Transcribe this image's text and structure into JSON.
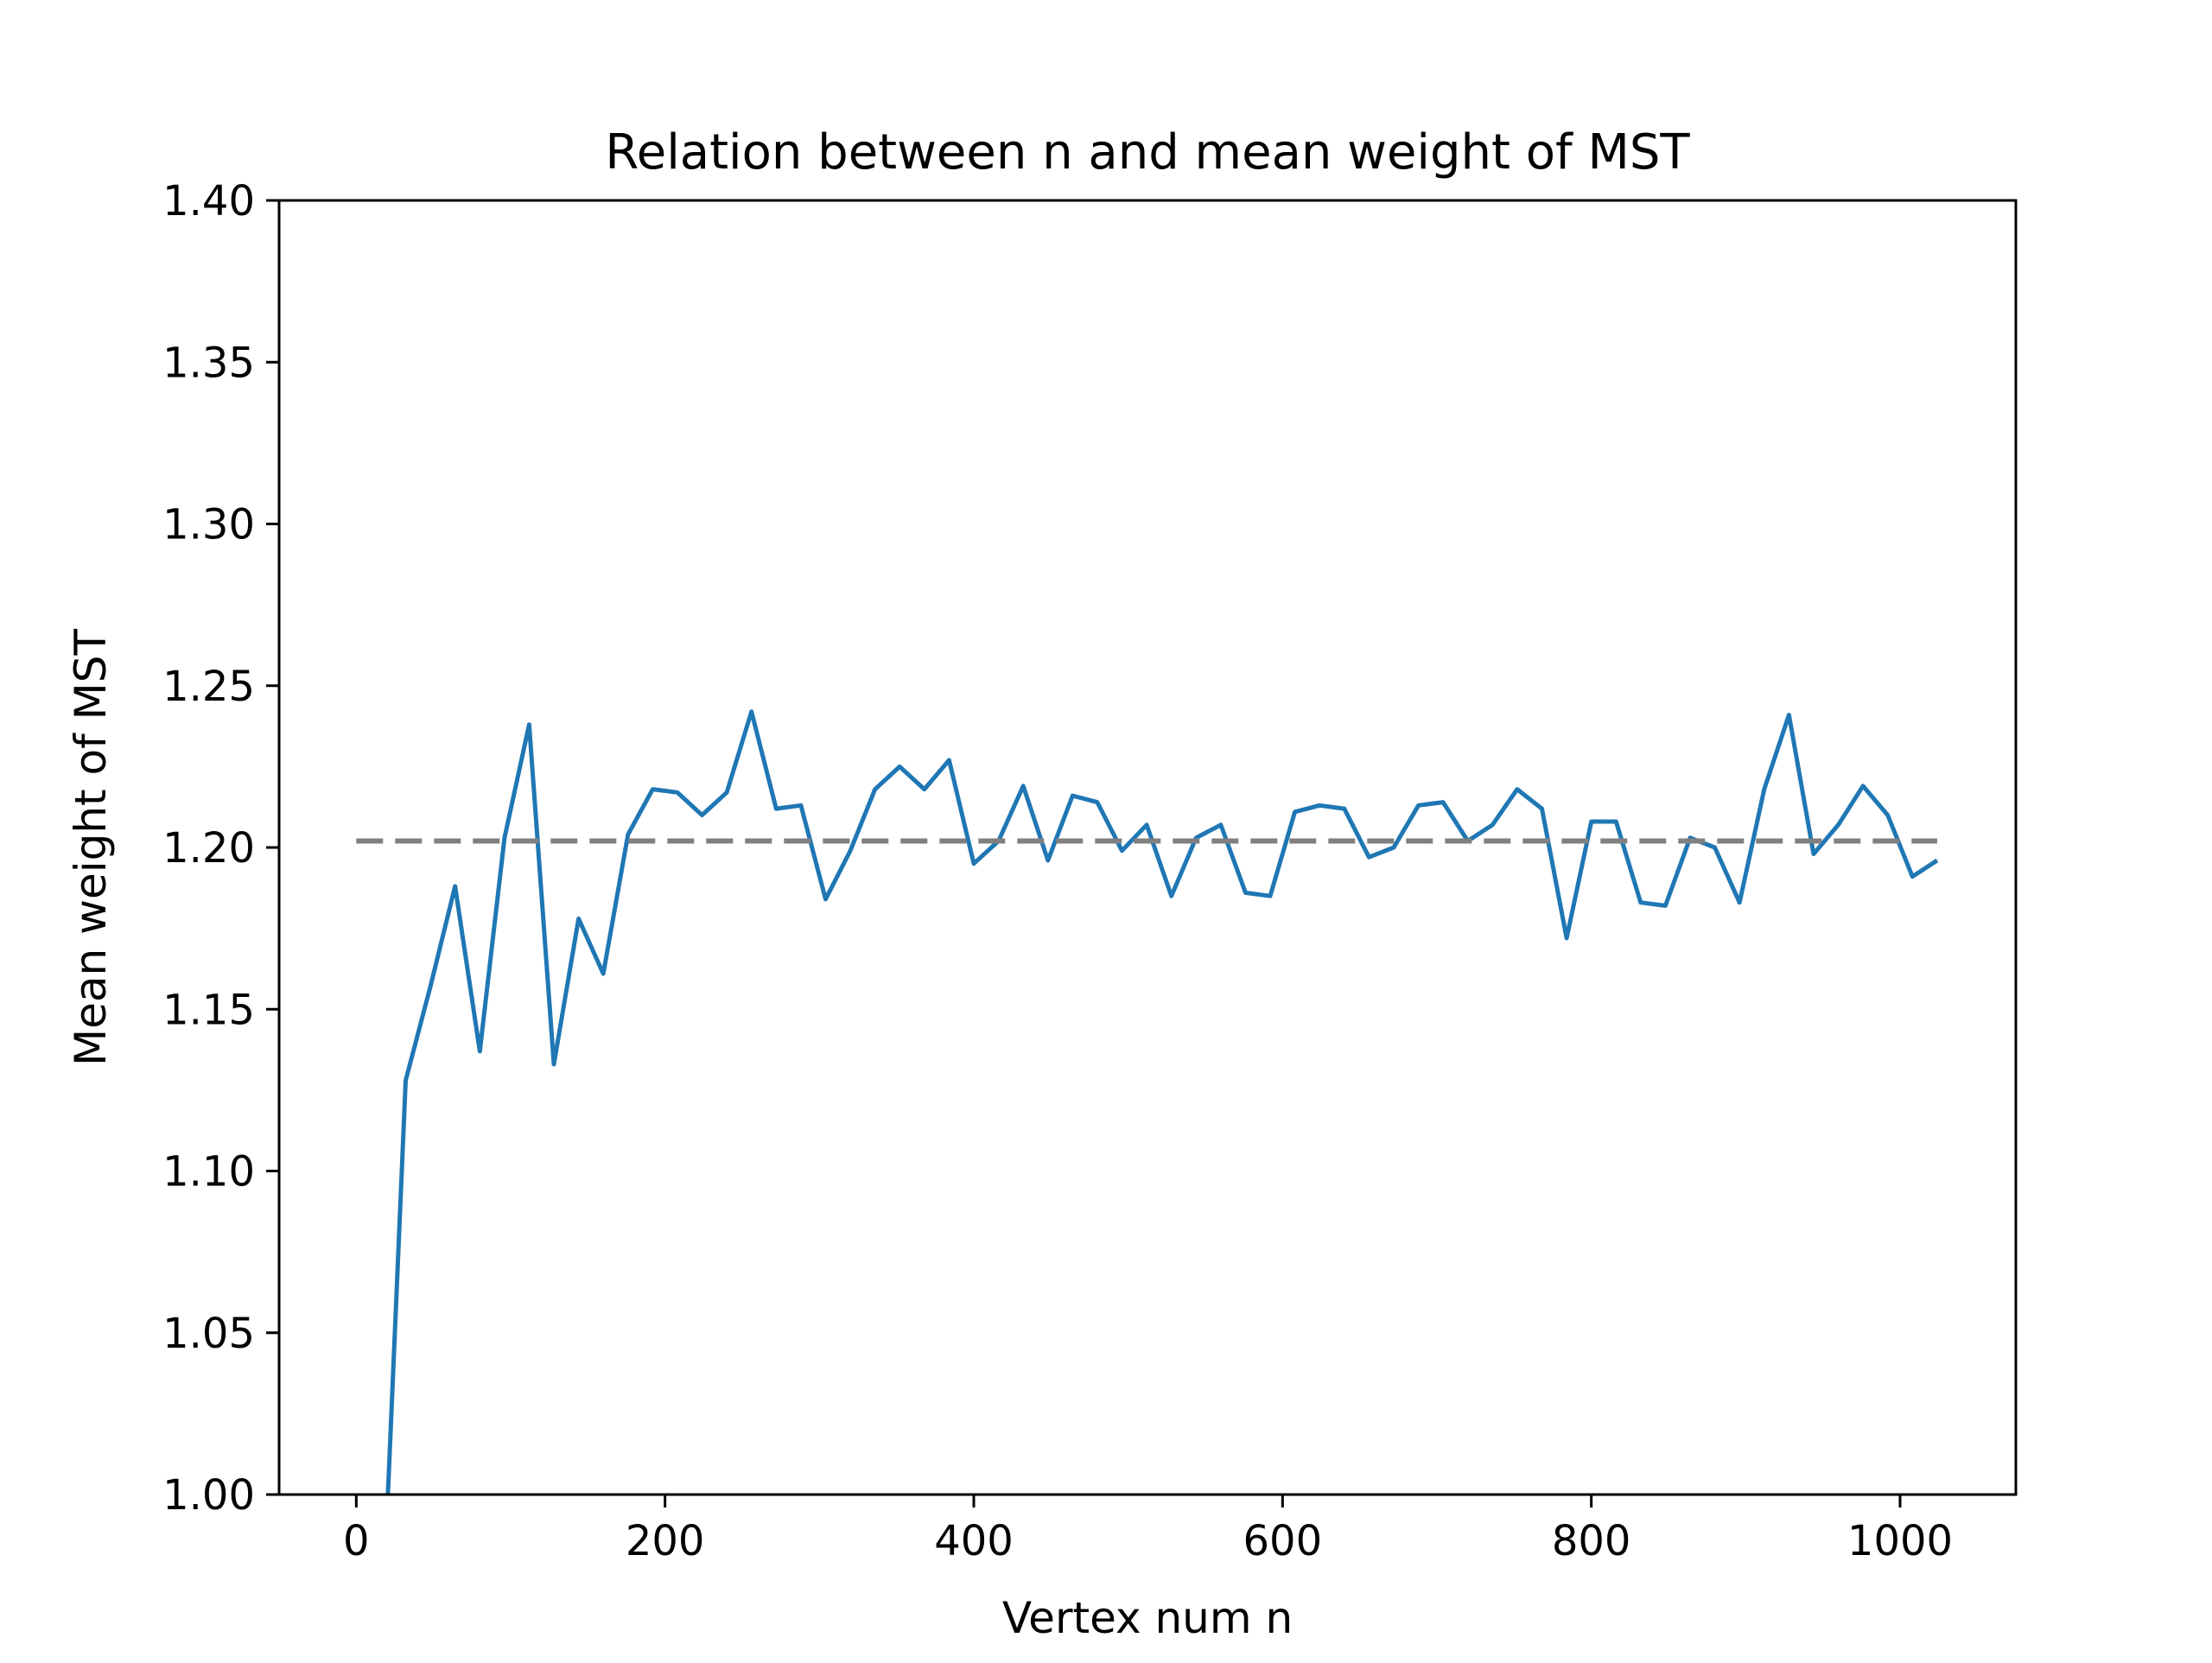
{
  "chart_data": {
    "type": "line",
    "title": "Relation between n and mean weight of MST",
    "xlabel": "Vertex num n",
    "ylabel": "Mean weight of MST",
    "xlim": [
      -50,
      1075
    ],
    "ylim": [
      1.0,
      1.4
    ],
    "x_ticks": [
      0,
      200,
      400,
      600,
      800,
      1000
    ],
    "x_tick_labels": [
      "0",
      "200",
      "400",
      "600",
      "800",
      "1000"
    ],
    "y_ticks": [
      1.0,
      1.05,
      1.1,
      1.15,
      1.2,
      1.25,
      1.3,
      1.35,
      1.4
    ],
    "y_tick_labels": [
      "1.00",
      "1.05",
      "1.10",
      "1.15",
      "1.20",
      "1.25",
      "1.30",
      "1.35",
      "1.40"
    ],
    "grid": false,
    "series": [
      {
        "color": "#1f77b4",
        "style": "solid",
        "x": [
          16,
          32,
          48,
          64,
          80,
          96,
          112,
          128,
          144,
          160,
          176,
          192,
          208,
          224,
          240,
          256,
          272,
          288,
          304,
          320,
          336,
          352,
          368,
          384,
          400,
          416,
          432,
          448,
          464,
          480,
          496,
          512,
          528,
          544,
          560,
          576,
          592,
          608,
          624,
          640,
          656,
          672,
          688,
          704,
          720,
          736,
          752,
          768,
          784,
          800,
          816,
          832,
          848,
          864,
          880,
          896,
          912,
          928,
          944,
          960,
          976,
          992,
          1008,
          1024
        ],
        "y": [
          0.95,
          1.128,
          1.157,
          1.188,
          1.137,
          1.203,
          1.238,
          1.133,
          1.178,
          1.161,
          1.204,
          1.218,
          1.217,
          1.21,
          1.217,
          1.242,
          1.212,
          1.213,
          1.184,
          1.199,
          1.218,
          1.225,
          1.218,
          1.227,
          1.195,
          1.202,
          1.219,
          1.196,
          1.216,
          1.214,
          1.199,
          1.207,
          1.185,
          1.203,
          1.207,
          1.186,
          1.185,
          1.211,
          1.213,
          1.212,
          1.197,
          1.2,
          1.213,
          1.214,
          1.202,
          1.207,
          1.218,
          1.212,
          1.172,
          1.208,
          1.208,
          1.183,
          1.182,
          1.203,
          1.2,
          1.183,
          1.218,
          1.241,
          1.198,
          1.207,
          1.219,
          1.21,
          1.191,
          1.196
        ]
      },
      {
        "color": "#808080",
        "style": "dashed",
        "x": [
          0,
          1024
        ],
        "y": [
          1.202,
          1.202
        ]
      }
    ]
  }
}
